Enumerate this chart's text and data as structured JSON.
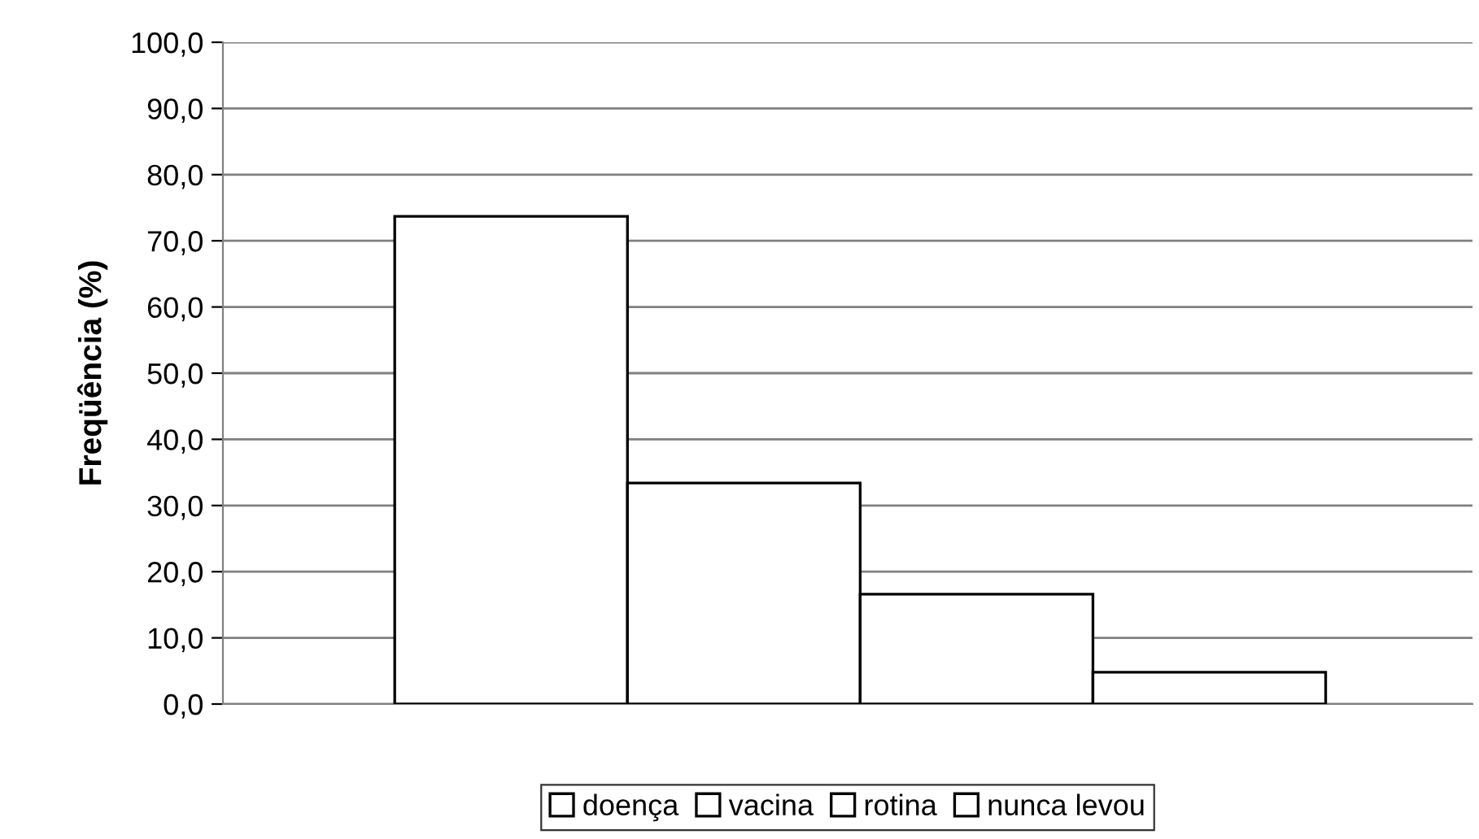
{
  "chart_data": {
    "type": "bar",
    "ylabel": "Freqüência (%)",
    "categories": [
      null
    ],
    "series": [
      {
        "name": "doença",
        "color": "#ffffff",
        "values": [
          73.7
        ]
      },
      {
        "name": "vacina",
        "color": "#ffffff",
        "values": [
          33.4
        ]
      },
      {
        "name": "rotina",
        "color": "#ffffff",
        "values": [
          16.6
        ]
      },
      {
        "name": "nunca levou",
        "color": "#ffffff",
        "values": [
          4.8
        ]
      }
    ],
    "ylim": [
      0,
      100
    ],
    "yticks": [
      {
        "value": 0,
        "label": "0,0"
      },
      {
        "value": 10,
        "label": "10,0"
      },
      {
        "value": 20,
        "label": "20,0"
      },
      {
        "value": 30,
        "label": "30,0"
      },
      {
        "value": 40,
        "label": "40,0"
      },
      {
        "value": 50,
        "label": "50,0"
      },
      {
        "value": 60,
        "label": "60,0"
      },
      {
        "value": 70,
        "label": "70,0"
      },
      {
        "value": 80,
        "label": "80,0"
      },
      {
        "value": 90,
        "label": "90,0"
      },
      {
        "value": 100,
        "label": "100,0"
      }
    ],
    "grid": "y",
    "legend": "bottom"
  }
}
